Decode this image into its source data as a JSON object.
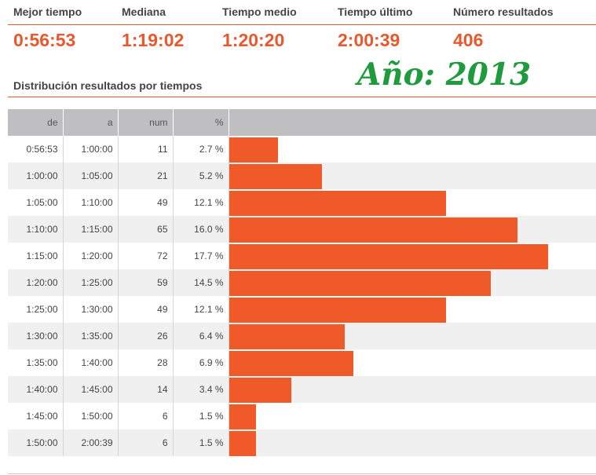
{
  "stats": [
    {
      "label": "Mejor tiempo",
      "value": "0:56:53"
    },
    {
      "label": "Mediana",
      "value": "1:19:02"
    },
    {
      "label": "Tiempo medio",
      "value": "1:20:20"
    },
    {
      "label": "Tiempo último",
      "value": "2:00:39"
    },
    {
      "label": "Número resultados",
      "value": "406"
    }
  ],
  "section_title": "Distribución resultados por tiempos",
  "year_label": "Año: 2013",
  "colors": {
    "accent": "#e8582c",
    "bar": "#f05a28",
    "year": "#1f9a3c",
    "header_bg": "#bfbfc1"
  },
  "table": {
    "headers": [
      "de",
      "a",
      "num",
      "%"
    ],
    "rows": [
      {
        "de": "0:56:53",
        "a": "1:00:00",
        "num": "11",
        "pct": "2.7 %"
      },
      {
        "de": "1:00:00",
        "a": "1:05:00",
        "num": "21",
        "pct": "5.2 %"
      },
      {
        "de": "1:05:00",
        "a": "1:10:00",
        "num": "49",
        "pct": "12.1 %"
      },
      {
        "de": "1:10:00",
        "a": "1:15:00",
        "num": "65",
        "pct": "16.0 %"
      },
      {
        "de": "1:15:00",
        "a": "1:20:00",
        "num": "72",
        "pct": "17.7 %"
      },
      {
        "de": "1:20:00",
        "a": "1:25:00",
        "num": "59",
        "pct": "14.5 %"
      },
      {
        "de": "1:25:00",
        "a": "1:30:00",
        "num": "49",
        "pct": "12.1 %"
      },
      {
        "de": "1:30:00",
        "a": "1:35:00",
        "num": "26",
        "pct": "6.4 %"
      },
      {
        "de": "1:35:00",
        "a": "1:40:00",
        "num": "28",
        "pct": "6.9 %"
      },
      {
        "de": "1:40:00",
        "a": "1:45:00",
        "num": "14",
        "pct": "3.4 %"
      },
      {
        "de": "1:45:00",
        "a": "1:50:00",
        "num": "6",
        "pct": "1.5 %"
      },
      {
        "de": "1:50:00",
        "a": "2:00:39",
        "num": "6",
        "pct": "1.5 %"
      }
    ]
  },
  "chart_data": {
    "type": "bar",
    "orientation": "horizontal",
    "title": "Distribución resultados por tiempos",
    "categories": [
      "0:56:53 - 1:00:00",
      "1:00:00 - 1:05:00",
      "1:05:00 - 1:10:00",
      "1:10:00 - 1:15:00",
      "1:15:00 - 1:20:00",
      "1:20:00 - 1:25:00",
      "1:25:00 - 1:30:00",
      "1:30:00 - 1:35:00",
      "1:35:00 - 1:40:00",
      "1:40:00 - 1:45:00",
      "1:45:00 - 1:50:00",
      "1:50:00 - 2:00:39"
    ],
    "values": [
      11,
      21,
      49,
      65,
      72,
      59,
      49,
      26,
      28,
      14,
      6,
      6
    ],
    "percentages": [
      2.7,
      5.2,
      12.1,
      16.0,
      17.7,
      14.5,
      12.1,
      6.4,
      6.9,
      3.4,
      1.5,
      1.5
    ],
    "grid": false,
    "legend": "none"
  }
}
